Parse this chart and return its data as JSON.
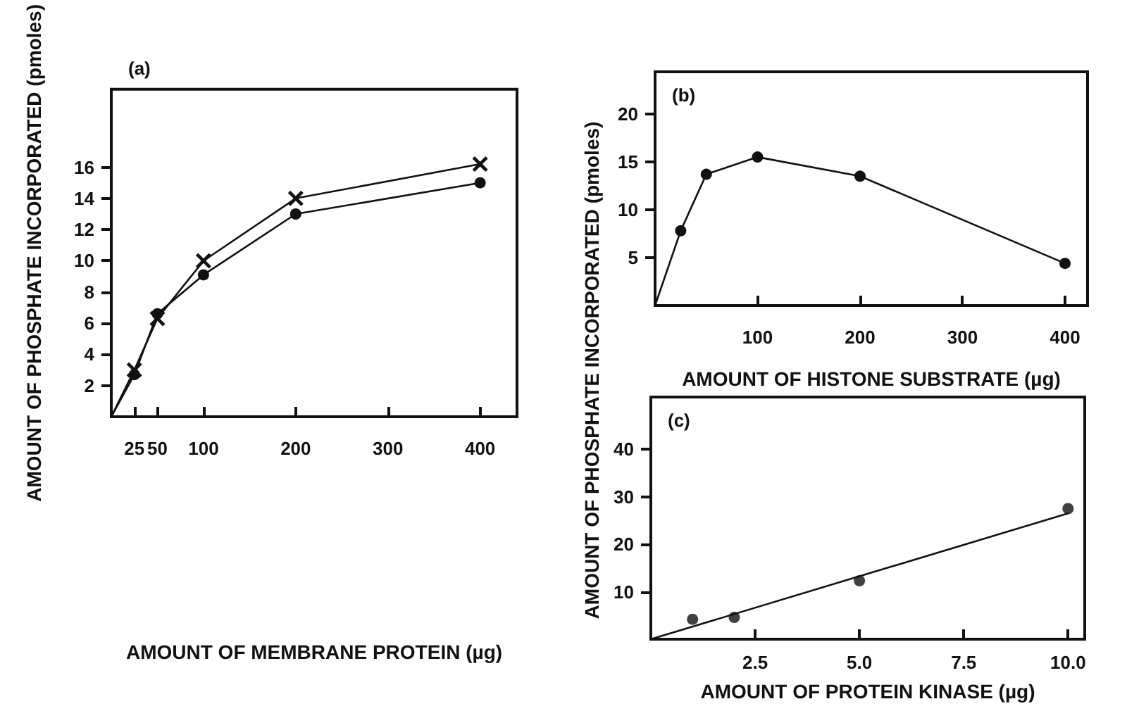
{
  "chart_data": [
    {
      "type": "line",
      "xlabel": "AMOUNT OF MEMBRANE PROTEIN (µg)",
      "ylabel": "AMOUNT OF PHOSPHATE INCORPORATED (pmoles)",
      "annotations": [
        "(a)"
      ],
      "xlim": [
        0,
        440
      ],
      "ylim": [
        0,
        21
      ],
      "xticks": [
        25,
        50,
        100,
        200,
        300,
        400
      ],
      "yticks": [
        2,
        4,
        6,
        8,
        10,
        12,
        14,
        16
      ],
      "grid": false,
      "line_style": "solid",
      "series": [
        {
          "marker": "cross",
          "color": "#111111",
          "x": [
            0,
            25,
            50,
            100,
            200,
            400
          ],
          "values": [
            0,
            3.0,
            6.3,
            10,
            14,
            16.2
          ]
        },
        {
          "marker": "circle",
          "color": "#111111",
          "x": [
            0,
            25,
            50,
            100,
            200,
            400
          ],
          "values": [
            0,
            2.7,
            6.6,
            9.1,
            13,
            15
          ]
        }
      ]
    },
    {
      "type": "line",
      "xlabel": "AMOUNT OF HISTONE SUBSTRATE (µg)",
      "ylabel": "AMOUNT OF PHOSPHATE INCORPORATED (pmoles)",
      "annotations": [
        "(b)"
      ],
      "xlim": [
        0,
        422
      ],
      "ylim": [
        0,
        24.4
      ],
      "xticks": [
        100,
        200,
        300,
        400
      ],
      "yticks": [
        5,
        10,
        15,
        20
      ],
      "grid": false,
      "line_style": "solid",
      "marker": "circle",
      "color": "#111111",
      "x": [
        0,
        25,
        50,
        100,
        200,
        400
      ],
      "values": [
        0,
        7.8,
        13.7,
        15.5,
        13.5,
        4.4
      ]
    },
    {
      "type": "scatter",
      "xlabel": "AMOUNT OF PROTEIN KINASE (µg)",
      "annotations": [
        "(c)"
      ],
      "xlim": [
        0,
        10.4
      ],
      "ylim": [
        0,
        51
      ],
      "xticks": [
        {
          "value": 2.5,
          "label": "2.5"
        },
        {
          "value": 5,
          "label": "5.0"
        },
        {
          "value": 7.5,
          "label": "7.5"
        },
        {
          "value": 10,
          "label": "10.0"
        }
      ],
      "yticks": [
        10,
        20,
        30,
        40
      ],
      "grid": false,
      "series": [
        {
          "marker": "circle",
          "color": "#111111",
          "x": [
            1,
            2,
            5,
            10
          ],
          "values": [
            4.2,
            4.6,
            12.3,
            27.5
          ]
        },
        {
          "type": "line",
          "marker": "none",
          "line_style": "solid",
          "color": "#111111",
          "x": [
            0,
            10
          ],
          "values": [
            0,
            26.5
          ]
        }
      ]
    }
  ]
}
